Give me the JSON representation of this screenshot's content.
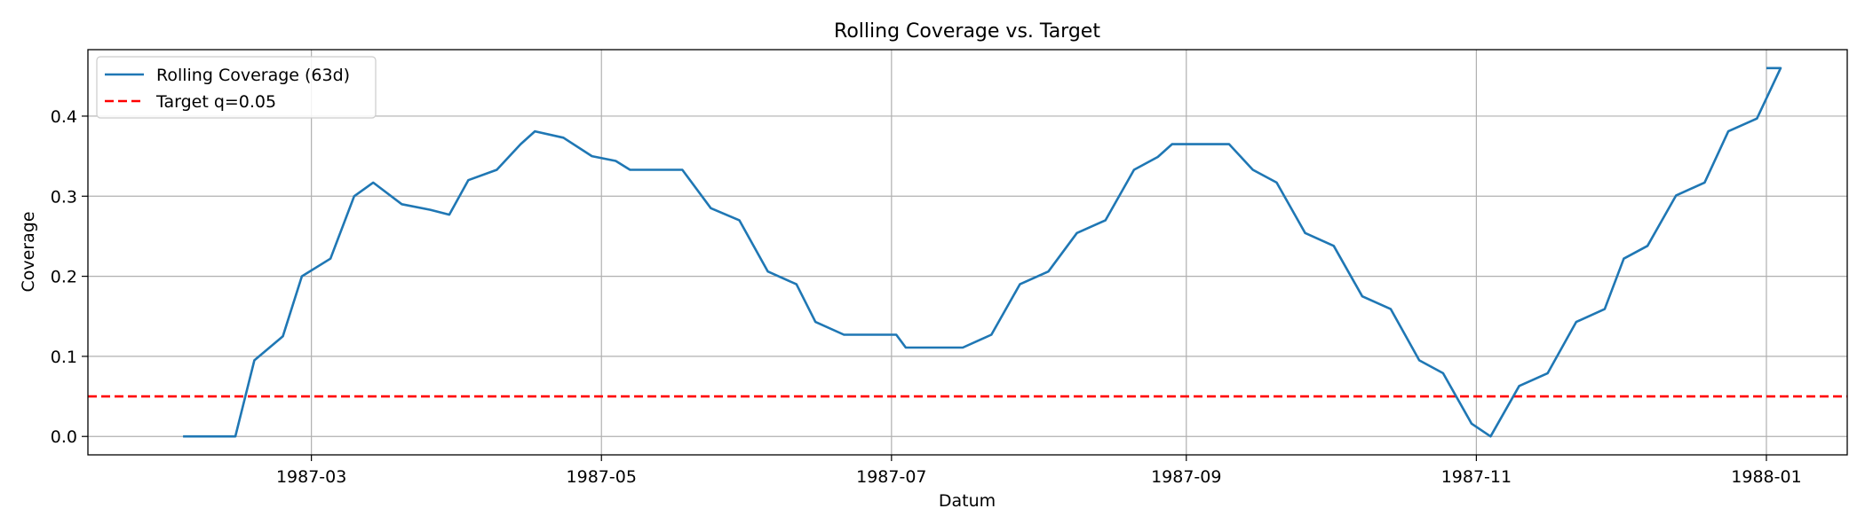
{
  "chart_data": {
    "type": "line",
    "title": "Rolling Coverage vs. Target",
    "xlabel": "Datum",
    "ylabel": "Coverage",
    "xlim": [
      "1987-01-13",
      "1988-01-18"
    ],
    "ylim": [
      -0.023,
      0.483
    ],
    "x_ticks": [
      "1987-03-01",
      "1987-05-01",
      "1987-07-01",
      "1987-09-01",
      "1987-11-01",
      "1988-01-01"
    ],
    "x_tick_labels": [
      "1987-03",
      "1987-05",
      "1987-07",
      "1987-09",
      "1987-11",
      "1988-01"
    ],
    "y_ticks": [
      0.0,
      0.1,
      0.2,
      0.3,
      0.4
    ],
    "y_tick_labels": [
      "0.0",
      "0.1",
      "0.2",
      "0.3",
      "0.4"
    ],
    "grid": true,
    "legend_position": "top-left",
    "series": [
      {
        "name": "Rolling Coverage (63d)",
        "color": "#1f77b4",
        "style": "solid",
        "points": [
          [
            "1987-02-02",
            0.0
          ],
          [
            "1987-02-13",
            0.0
          ],
          [
            "1987-02-17",
            0.095
          ],
          [
            "1987-02-23",
            0.125
          ],
          [
            "1987-02-27",
            0.2
          ],
          [
            "1987-03-05",
            0.222
          ],
          [
            "1987-03-10",
            0.3
          ],
          [
            "1987-03-14",
            0.317
          ],
          [
            "1987-03-20",
            0.29
          ],
          [
            "1987-03-26",
            0.283
          ],
          [
            "1987-03-30",
            0.277
          ],
          [
            "1987-04-03",
            0.32
          ],
          [
            "1987-04-09",
            0.333
          ],
          [
            "1987-04-14",
            0.365
          ],
          [
            "1987-04-17",
            0.381
          ],
          [
            "1987-04-23",
            0.373
          ],
          [
            "1987-04-29",
            0.35
          ],
          [
            "1987-05-04",
            0.344
          ],
          [
            "1987-05-07",
            0.333
          ],
          [
            "1987-05-13",
            0.333
          ],
          [
            "1987-05-18",
            0.333
          ],
          [
            "1987-05-24",
            0.285
          ],
          [
            "1987-05-30",
            0.27
          ],
          [
            "1987-06-05",
            0.206
          ],
          [
            "1987-06-11",
            0.19
          ],
          [
            "1987-06-15",
            0.143
          ],
          [
            "1987-06-21",
            0.127
          ],
          [
            "1987-06-26",
            0.127
          ],
          [
            "1987-07-02",
            0.127
          ],
          [
            "1987-07-04",
            0.111
          ],
          [
            "1987-07-10",
            0.111
          ],
          [
            "1987-07-16",
            0.111
          ],
          [
            "1987-07-22",
            0.127
          ],
          [
            "1987-07-28",
            0.19
          ],
          [
            "1987-08-03",
            0.206
          ],
          [
            "1987-08-09",
            0.254
          ],
          [
            "1987-08-15",
            0.27
          ],
          [
            "1987-08-21",
            0.333
          ],
          [
            "1987-08-26",
            0.349
          ],
          [
            "1987-08-29",
            0.365
          ],
          [
            "1987-09-06",
            0.365
          ],
          [
            "1987-09-10",
            0.365
          ],
          [
            "1987-09-15",
            0.333
          ],
          [
            "1987-09-20",
            0.317
          ],
          [
            "1987-09-26",
            0.254
          ],
          [
            "1987-10-02",
            0.238
          ],
          [
            "1987-10-08",
            0.175
          ],
          [
            "1987-10-14",
            0.159
          ],
          [
            "1987-10-20",
            0.095
          ],
          [
            "1987-10-25",
            0.079
          ],
          [
            "1987-10-31",
            0.016
          ],
          [
            "1987-11-04",
            0.0
          ],
          [
            "1987-11-10",
            0.063
          ],
          [
            "1987-11-16",
            0.079
          ],
          [
            "1987-11-22",
            0.143
          ],
          [
            "1987-11-28",
            0.159
          ],
          [
            "1987-12-02",
            0.222
          ],
          [
            "1987-12-07",
            0.238
          ],
          [
            "1987-12-13",
            0.301
          ],
          [
            "1987-12-19",
            0.317
          ],
          [
            "1987-12-24",
            0.381
          ],
          [
            "1987-12-30",
            0.397
          ],
          [
            "1988-01-04",
            0.46
          ],
          [
            "1988-01-01",
            0.46
          ]
        ]
      },
      {
        "name": "Target q=0.05",
        "color": "#ff0000",
        "style": "dashed",
        "value": 0.05
      }
    ]
  }
}
